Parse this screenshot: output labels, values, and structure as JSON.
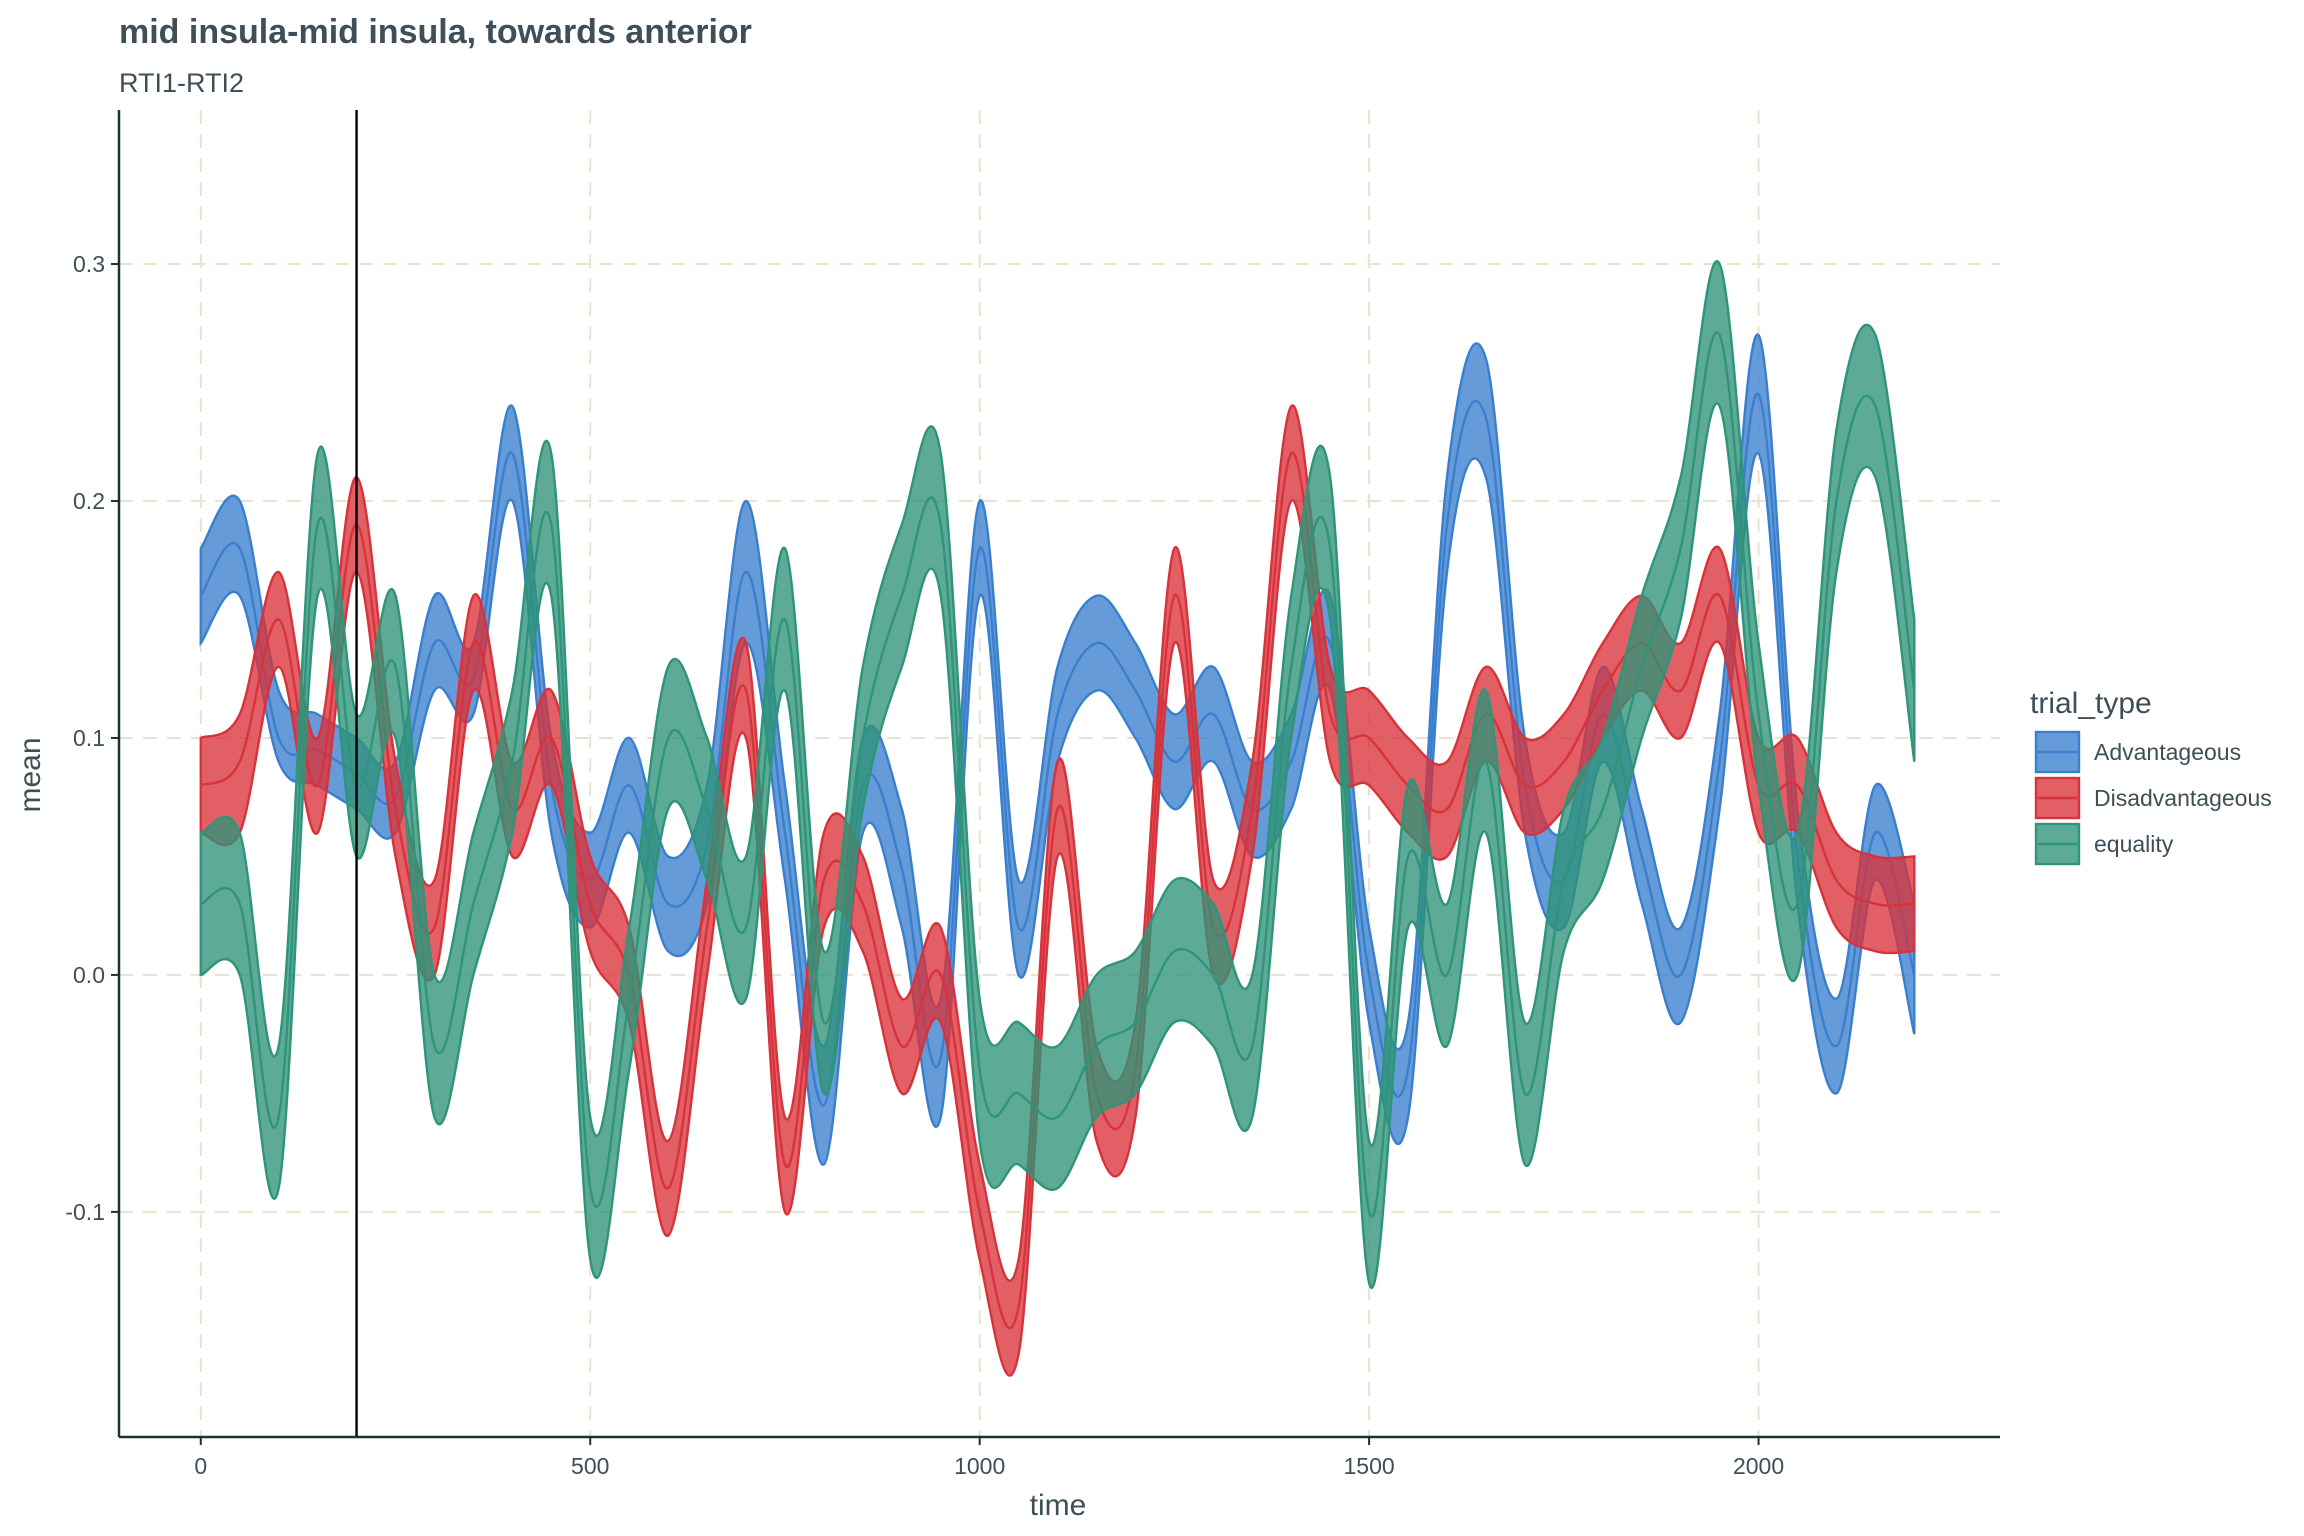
{
  "chart_data": {
    "type": "area",
    "title": "mid insula-mid insula, towards anterior",
    "subtitle": "RTI1-RTI2",
    "xlabel": "time",
    "ylabel": "mean",
    "xlim": [
      -105,
      2310
    ],
    "ylim": [
      -0.195,
      0.365
    ],
    "x_ticks": [
      0,
      500,
      1000,
      1500,
      2000
    ],
    "x_tick_labels": [
      "0",
      "500",
      "1000",
      "1500",
      "2000"
    ],
    "y_ticks": [
      -0.1,
      0.0,
      0.1,
      0.2,
      0.3
    ],
    "y_tick_labels": [
      "-0.1",
      "0.0",
      "0.1",
      "0.2",
      "0.3"
    ],
    "grid": "major, dashed",
    "vline_x": 200,
    "legend": {
      "title": "trial_type",
      "position": "right"
    },
    "x": [
      0,
      50,
      100,
      150,
      200,
      250,
      300,
      350,
      400,
      450,
      500,
      550,
      600,
      650,
      700,
      750,
      800,
      850,
      900,
      950,
      1000,
      1050,
      1100,
      1150,
      1200,
      1250,
      1300,
      1350,
      1400,
      1450,
      1500,
      1550,
      1600,
      1650,
      1700,
      1750,
      1800,
      1850,
      1900,
      1950,
      2000,
      2050,
      2100,
      2150,
      2200
    ],
    "series": [
      {
        "name": "Advantageous",
        "color": "#3a7fce",
        "lower": [
          0.14,
          0.16,
          0.09,
          0.08,
          0.07,
          0.06,
          0.12,
          0.11,
          0.2,
          0.06,
          0.02,
          0.06,
          0.01,
          0.03,
          0.14,
          0.04,
          -0.08,
          0.06,
          0.02,
          -0.06,
          0.16,
          0.0,
          0.09,
          0.12,
          0.1,
          0.07,
          0.09,
          0.05,
          0.07,
          0.12,
          -0.02,
          -0.06,
          0.17,
          0.21,
          0.06,
          0.02,
          0.09,
          0.03,
          -0.02,
          0.07,
          0.22,
          0.03,
          -0.05,
          0.04,
          -0.025
        ],
        "mean": [
          0.16,
          0.18,
          0.1,
          0.095,
          0.085,
          0.075,
          0.14,
          0.125,
          0.22,
          0.08,
          0.04,
          0.08,
          0.03,
          0.055,
          0.17,
          0.06,
          -0.055,
          0.08,
          0.045,
          -0.035,
          0.18,
          0.02,
          0.11,
          0.14,
          0.12,
          0.09,
          0.11,
          0.07,
          0.09,
          0.14,
          0.0,
          -0.04,
          0.19,
          0.235,
          0.08,
          0.04,
          0.11,
          0.05,
          0.0,
          0.09,
          0.245,
          0.05,
          -0.03,
          0.06,
          0.0
        ],
        "upper": [
          0.18,
          0.2,
          0.12,
          0.11,
          0.1,
          0.09,
          0.16,
          0.14,
          0.24,
          0.1,
          0.06,
          0.1,
          0.05,
          0.08,
          0.2,
          0.08,
          -0.03,
          0.1,
          0.07,
          -0.01,
          0.2,
          0.04,
          0.13,
          0.16,
          0.14,
          0.11,
          0.13,
          0.09,
          0.11,
          0.16,
          0.02,
          -0.02,
          0.21,
          0.26,
          0.1,
          0.06,
          0.13,
          0.07,
          0.02,
          0.11,
          0.27,
          0.07,
          -0.01,
          0.08,
          0.03
        ]
      },
      {
        "name": "Disadvantageous",
        "color": "#d8323a",
        "lower": [
          0.06,
          0.06,
          0.13,
          0.06,
          0.17,
          0.05,
          0.0,
          0.12,
          0.05,
          0.08,
          0.01,
          -0.02,
          -0.11,
          0.0,
          0.1,
          -0.1,
          0.02,
          0.01,
          -0.05,
          -0.02,
          -0.12,
          -0.16,
          0.05,
          -0.07,
          -0.06,
          0.14,
          0.0,
          0.05,
          0.2,
          0.09,
          0.08,
          0.06,
          0.05,
          0.09,
          0.06,
          0.07,
          0.1,
          0.12,
          0.1,
          0.14,
          0.06,
          0.06,
          0.02,
          0.01,
          0.01
        ],
        "mean": [
          0.08,
          0.09,
          0.15,
          0.08,
          0.19,
          0.07,
          0.02,
          0.14,
          0.07,
          0.1,
          0.03,
          0.0,
          -0.09,
          0.02,
          0.12,
          -0.08,
          0.04,
          0.03,
          -0.03,
          0.0,
          -0.1,
          -0.14,
          0.07,
          -0.05,
          -0.04,
          0.16,
          0.02,
          0.07,
          0.22,
          0.11,
          0.1,
          0.08,
          0.07,
          0.11,
          0.08,
          0.09,
          0.12,
          0.14,
          0.12,
          0.16,
          0.08,
          0.08,
          0.04,
          0.03,
          0.03
        ],
        "upper": [
          0.1,
          0.11,
          0.17,
          0.1,
          0.21,
          0.09,
          0.04,
          0.16,
          0.09,
          0.12,
          0.05,
          0.02,
          -0.07,
          0.04,
          0.14,
          -0.06,
          0.06,
          0.05,
          -0.01,
          0.02,
          -0.08,
          -0.12,
          0.09,
          -0.03,
          -0.02,
          0.18,
          0.04,
          0.09,
          0.24,
          0.13,
          0.12,
          0.1,
          0.09,
          0.13,
          0.1,
          0.11,
          0.14,
          0.16,
          0.14,
          0.18,
          0.1,
          0.1,
          0.06,
          0.05,
          0.05
        ]
      },
      {
        "name": "equality",
        "color": "#2f9479",
        "lower": [
          0.0,
          0.0,
          -0.09,
          0.16,
          0.05,
          0.1,
          -0.06,
          0.0,
          0.06,
          0.16,
          -0.12,
          -0.04,
          0.07,
          0.04,
          -0.01,
          0.12,
          -0.05,
          0.07,
          0.13,
          0.16,
          -0.07,
          -0.08,
          -0.09,
          -0.06,
          -0.05,
          -0.02,
          -0.03,
          -0.06,
          0.1,
          0.15,
          -0.13,
          0.02,
          -0.03,
          0.06,
          -0.08,
          0.01,
          0.04,
          0.1,
          0.15,
          0.24,
          0.08,
          0.0,
          0.17,
          0.21,
          0.09
        ],
        "mean": [
          0.03,
          0.03,
          -0.06,
          0.19,
          0.08,
          0.13,
          -0.03,
          0.03,
          0.09,
          0.19,
          -0.09,
          -0.01,
          0.1,
          0.07,
          0.02,
          0.15,
          -0.02,
          0.1,
          0.16,
          0.19,
          -0.04,
          -0.05,
          -0.06,
          -0.03,
          -0.02,
          0.01,
          0.0,
          -0.03,
          0.13,
          0.18,
          -0.1,
          0.05,
          0.0,
          0.09,
          -0.05,
          0.04,
          0.07,
          0.13,
          0.18,
          0.27,
          0.11,
          0.03,
          0.2,
          0.24,
          0.12
        ],
        "upper": [
          0.06,
          0.06,
          -0.03,
          0.22,
          0.11,
          0.16,
          0.0,
          0.06,
          0.12,
          0.22,
          -0.06,
          0.02,
          0.13,
          0.1,
          0.05,
          0.18,
          0.01,
          0.13,
          0.19,
          0.22,
          -0.01,
          -0.02,
          -0.03,
          0.0,
          0.01,
          0.04,
          0.03,
          0.0,
          0.16,
          0.21,
          -0.07,
          0.08,
          0.03,
          0.12,
          -0.02,
          0.07,
          0.1,
          0.16,
          0.21,
          0.3,
          0.14,
          0.06,
          0.23,
          0.27,
          0.15
        ]
      }
    ]
  }
}
